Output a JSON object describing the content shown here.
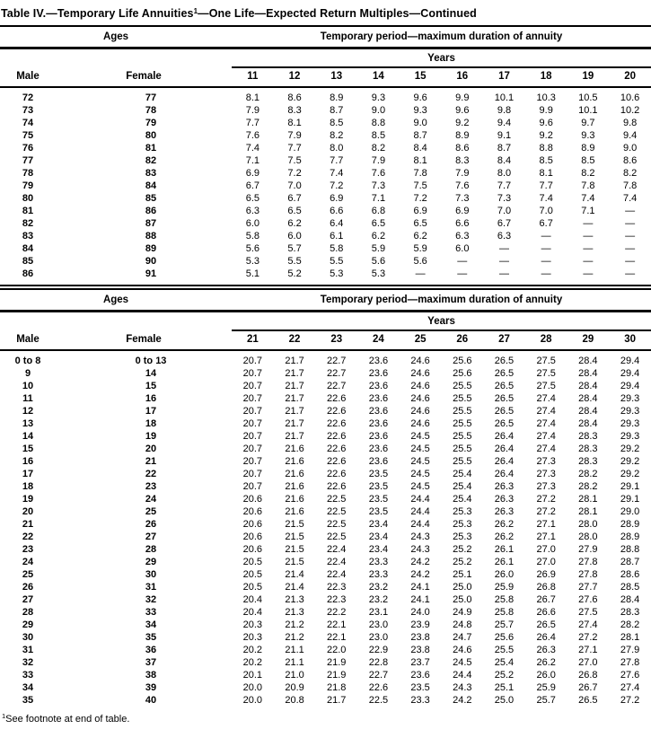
{
  "page": {
    "title_pre": "Table IV.—Temporary Life Annuities",
    "title_sup": "1",
    "title_post": "—One Life—Expected Return Multiples—Continued",
    "footnote_sup": "1",
    "footnote_text": "See footnote at end of table."
  },
  "tables": [
    {
      "ages_header": "Ages",
      "period_header": "Temporary period—maximum duration of annuity",
      "years_header": "Years",
      "male_header": "Male",
      "female_header": "Female",
      "year_columns": [
        "11",
        "12",
        "13",
        "14",
        "15",
        "16",
        "17",
        "18",
        "19",
        "20"
      ],
      "rows": [
        {
          "male": "72",
          "female": "77",
          "values": [
            "8.1",
            "8.6",
            "8.9",
            "9.3",
            "9.6",
            "9.9",
            "10.1",
            "10.3",
            "10.5",
            "10.6"
          ]
        },
        {
          "male": "73",
          "female": "78",
          "values": [
            "7.9",
            "8.3",
            "8.7",
            "9.0",
            "9.3",
            "9.6",
            "9.8",
            "9.9",
            "10.1",
            "10.2"
          ]
        },
        {
          "male": "74",
          "female": "79",
          "values": [
            "7.7",
            "8.1",
            "8.5",
            "8.8",
            "9.0",
            "9.2",
            "9.4",
            "9.6",
            "9.7",
            "9.8"
          ]
        },
        {
          "male": "75",
          "female": "80",
          "values": [
            "7.6",
            "7.9",
            "8.2",
            "8.5",
            "8.7",
            "8.9",
            "9.1",
            "9.2",
            "9.3",
            "9.4"
          ]
        },
        {
          "male": "76",
          "female": "81",
          "values": [
            "7.4",
            "7.7",
            "8.0",
            "8.2",
            "8.4",
            "8.6",
            "8.7",
            "8.8",
            "8.9",
            "9.0"
          ]
        },
        {
          "male": "77",
          "female": "82",
          "values": [
            "7.1",
            "7.5",
            "7.7",
            "7.9",
            "8.1",
            "8.3",
            "8.4",
            "8.5",
            "8.5",
            "8.6"
          ]
        },
        {
          "male": "78",
          "female": "83",
          "values": [
            "6.9",
            "7.2",
            "7.4",
            "7.6",
            "7.8",
            "7.9",
            "8.0",
            "8.1",
            "8.2",
            "8.2"
          ]
        },
        {
          "male": "79",
          "female": "84",
          "values": [
            "6.7",
            "7.0",
            "7.2",
            "7.3",
            "7.5",
            "7.6",
            "7.7",
            "7.7",
            "7.8",
            "7.8"
          ]
        },
        {
          "male": "80",
          "female": "85",
          "values": [
            "6.5",
            "6.7",
            "6.9",
            "7.1",
            "7.2",
            "7.3",
            "7.3",
            "7.4",
            "7.4",
            "7.4"
          ]
        },
        {
          "male": "81",
          "female": "86",
          "values": [
            "6.3",
            "6.5",
            "6.6",
            "6.8",
            "6.9",
            "6.9",
            "7.0",
            "7.0",
            "7.1",
            "—"
          ]
        },
        {
          "male": "82",
          "female": "87",
          "values": [
            "6.0",
            "6.2",
            "6.4",
            "6.5",
            "6.5",
            "6.6",
            "6.7",
            "6.7",
            "—",
            "—"
          ]
        },
        {
          "male": "83",
          "female": "88",
          "values": [
            "5.8",
            "6.0",
            "6.1",
            "6.2",
            "6.2",
            "6.3",
            "6.3",
            "—",
            "—",
            "—"
          ]
        },
        {
          "male": "84",
          "female": "89",
          "values": [
            "5.6",
            "5.7",
            "5.8",
            "5.9",
            "5.9",
            "6.0",
            "—",
            "—",
            "—",
            "—"
          ]
        },
        {
          "male": "85",
          "female": "90",
          "values": [
            "5.3",
            "5.5",
            "5.5",
            "5.6",
            "5.6",
            "—",
            "—",
            "—",
            "—",
            "—"
          ]
        },
        {
          "male": "86",
          "female": "91",
          "values": [
            "5.1",
            "5.2",
            "5.3",
            "5.3",
            "—",
            "—",
            "—",
            "—",
            "—",
            "—"
          ]
        }
      ]
    },
    {
      "ages_header": "Ages",
      "period_header": "Temporary period—maximum duration of annuity",
      "years_header": "Years",
      "male_header": "Male",
      "female_header": "Female",
      "year_columns": [
        "21",
        "22",
        "23",
        "24",
        "25",
        "26",
        "27",
        "28",
        "29",
        "30"
      ],
      "rows": [
        {
          "male": "0 to 8",
          "female": "0 to 13",
          "values": [
            "20.7",
            "21.7",
            "22.7",
            "23.6",
            "24.6",
            "25.6",
            "26.5",
            "27.5",
            "28.4",
            "29.4"
          ]
        },
        {
          "male": "9",
          "female": "14",
          "values": [
            "20.7",
            "21.7",
            "22.7",
            "23.6",
            "24.6",
            "25.6",
            "26.5",
            "27.5",
            "28.4",
            "29.4"
          ]
        },
        {
          "male": "10",
          "female": "15",
          "values": [
            "20.7",
            "21.7",
            "22.7",
            "23.6",
            "24.6",
            "25.5",
            "26.5",
            "27.5",
            "28.4",
            "29.4"
          ]
        },
        {
          "male": "11",
          "female": "16",
          "values": [
            "20.7",
            "21.7",
            "22.6",
            "23.6",
            "24.6",
            "25.5",
            "26.5",
            "27.4",
            "28.4",
            "29.3"
          ]
        },
        {
          "male": "12",
          "female": "17",
          "values": [
            "20.7",
            "21.7",
            "22.6",
            "23.6",
            "24.6",
            "25.5",
            "26.5",
            "27.4",
            "28.4",
            "29.3"
          ]
        },
        {
          "male": "13",
          "female": "18",
          "values": [
            "20.7",
            "21.7",
            "22.6",
            "23.6",
            "24.6",
            "25.5",
            "26.5",
            "27.4",
            "28.4",
            "29.3"
          ]
        },
        {
          "male": "14",
          "female": "19",
          "values": [
            "20.7",
            "21.7",
            "22.6",
            "23.6",
            "24.5",
            "25.5",
            "26.4",
            "27.4",
            "28.3",
            "29.3"
          ]
        },
        {
          "male": "15",
          "female": "20",
          "values": [
            "20.7",
            "21.6",
            "22.6",
            "23.6",
            "24.5",
            "25.5",
            "26.4",
            "27.4",
            "28.3",
            "29.2"
          ]
        },
        {
          "male": "16",
          "female": "21",
          "values": [
            "20.7",
            "21.6",
            "22.6",
            "23.6",
            "24.5",
            "25.5",
            "26.4",
            "27.3",
            "28.3",
            "29.2"
          ]
        },
        {
          "male": "17",
          "female": "22",
          "values": [
            "20.7",
            "21.6",
            "22.6",
            "23.5",
            "24.5",
            "25.4",
            "26.4",
            "27.3",
            "28.2",
            "29.2"
          ]
        },
        {
          "male": "18",
          "female": "23",
          "values": [
            "20.7",
            "21.6",
            "22.6",
            "23.5",
            "24.5",
            "25.4",
            "26.3",
            "27.3",
            "28.2",
            "29.1"
          ]
        },
        {
          "male": "19",
          "female": "24",
          "values": [
            "20.6",
            "21.6",
            "22.5",
            "23.5",
            "24.4",
            "25.4",
            "26.3",
            "27.2",
            "28.1",
            "29.1"
          ]
        },
        {
          "male": "20",
          "female": "25",
          "values": [
            "20.6",
            "21.6",
            "22.5",
            "23.5",
            "24.4",
            "25.3",
            "26.3",
            "27.2",
            "28.1",
            "29.0"
          ]
        },
        {
          "male": "21",
          "female": "26",
          "values": [
            "20.6",
            "21.5",
            "22.5",
            "23.4",
            "24.4",
            "25.3",
            "26.2",
            "27.1",
            "28.0",
            "28.9"
          ]
        },
        {
          "male": "22",
          "female": "27",
          "values": [
            "20.6",
            "21.5",
            "22.5",
            "23.4",
            "24.3",
            "25.3",
            "26.2",
            "27.1",
            "28.0",
            "28.9"
          ]
        },
        {
          "male": "23",
          "female": "28",
          "values": [
            "20.6",
            "21.5",
            "22.4",
            "23.4",
            "24.3",
            "25.2",
            "26.1",
            "27.0",
            "27.9",
            "28.8"
          ]
        },
        {
          "male": "24",
          "female": "29",
          "values": [
            "20.5",
            "21.5",
            "22.4",
            "23.3",
            "24.2",
            "25.2",
            "26.1",
            "27.0",
            "27.8",
            "28.7"
          ]
        },
        {
          "male": "25",
          "female": "30",
          "values": [
            "20.5",
            "21.4",
            "22.4",
            "23.3",
            "24.2",
            "25.1",
            "26.0",
            "26.9",
            "27.8",
            "28.6"
          ]
        },
        {
          "male": "26",
          "female": "31",
          "values": [
            "20.5",
            "21.4",
            "22.3",
            "23.2",
            "24.1",
            "25.0",
            "25.9",
            "26.8",
            "27.7",
            "28.5"
          ]
        },
        {
          "male": "27",
          "female": "32",
          "values": [
            "20.4",
            "21.3",
            "22.3",
            "23.2",
            "24.1",
            "25.0",
            "25.8",
            "26.7",
            "27.6",
            "28.4"
          ]
        },
        {
          "male": "28",
          "female": "33",
          "values": [
            "20.4",
            "21.3",
            "22.2",
            "23.1",
            "24.0",
            "24.9",
            "25.8",
            "26.6",
            "27.5",
            "28.3"
          ]
        },
        {
          "male": "29",
          "female": "34",
          "values": [
            "20.3",
            "21.2",
            "22.1",
            "23.0",
            "23.9",
            "24.8",
            "25.7",
            "26.5",
            "27.4",
            "28.2"
          ]
        },
        {
          "male": "30",
          "female": "35",
          "values": [
            "20.3",
            "21.2",
            "22.1",
            "23.0",
            "23.8",
            "24.7",
            "25.6",
            "26.4",
            "27.2",
            "28.1"
          ]
        },
        {
          "male": "31",
          "female": "36",
          "values": [
            "20.2",
            "21.1",
            "22.0",
            "22.9",
            "23.8",
            "24.6",
            "25.5",
            "26.3",
            "27.1",
            "27.9"
          ]
        },
        {
          "male": "32",
          "female": "37",
          "values": [
            "20.2",
            "21.1",
            "21.9",
            "22.8",
            "23.7",
            "24.5",
            "25.4",
            "26.2",
            "27.0",
            "27.8"
          ]
        },
        {
          "male": "33",
          "female": "38",
          "values": [
            "20.1",
            "21.0",
            "21.9",
            "22.7",
            "23.6",
            "24.4",
            "25.2",
            "26.0",
            "26.8",
            "27.6"
          ]
        },
        {
          "male": "34",
          "female": "39",
          "values": [
            "20.0",
            "20.9",
            "21.8",
            "22.6",
            "23.5",
            "24.3",
            "25.1",
            "25.9",
            "26.7",
            "27.4"
          ]
        },
        {
          "male": "35",
          "female": "40",
          "values": [
            "20.0",
            "20.8",
            "21.7",
            "22.5",
            "23.3",
            "24.2",
            "25.0",
            "25.7",
            "26.5",
            "27.2"
          ]
        }
      ]
    }
  ]
}
